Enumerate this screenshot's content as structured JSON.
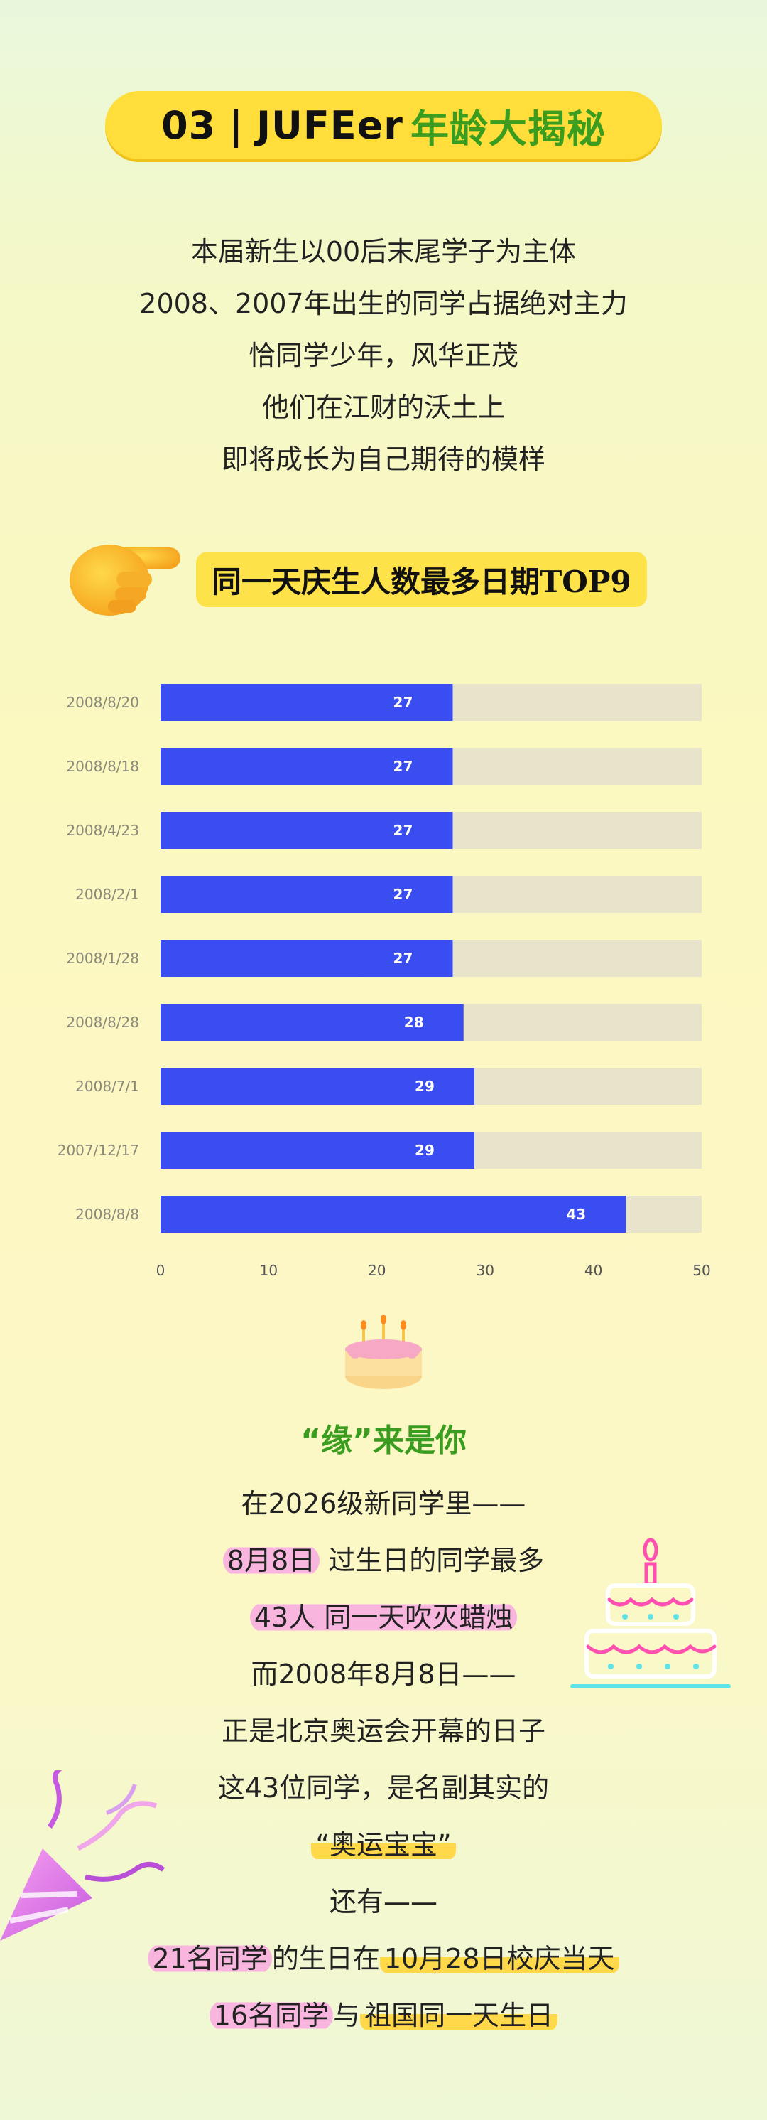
{
  "header": {
    "number": "03",
    "separator": "|",
    "title_en": "JUFEer",
    "title_cn": "年龄大揭秘"
  },
  "intro": [
    "本届新生以00后末尾学子为主体",
    "2008、2007年出生的同学占据绝对主力",
    "恰同学少年，风华正茂",
    "他们在江财的沃土上",
    "即将成长为自己期待的模样"
  ],
  "chart_title": "同一天庆生人数最多日期TOP9",
  "chart_data": {
    "type": "bar",
    "orientation": "horizontal",
    "categories": [
      "2008/8/20",
      "2008/8/18",
      "2008/4/23",
      "2008/2/1",
      "2008/1/28",
      "2008/8/28",
      "2008/7/1",
      "2007/12/17",
      "2008/8/8"
    ],
    "values": [
      27,
      27,
      27,
      27,
      27,
      28,
      29,
      29,
      43
    ],
    "xlim": [
      0,
      50
    ],
    "xticks": [
      0,
      10,
      20,
      30,
      40,
      50
    ],
    "bar_color": "#3a4df0",
    "track_color": "#e8e4cc",
    "label_color": "#ffffff"
  },
  "yuan_heading": "“缘”来是你",
  "story": {
    "line1": "在2026级新同学里——",
    "line2_hl": "8月8日",
    "line2_rest": "过生日的同学最多",
    "line3_hl": "43人 同一天吹灭蜡烛",
    "line4": "而2008年8月8日——",
    "line5": "正是北京奥运会开幕的日子",
    "line6": "这43位同学，是名副其实的",
    "line7_hl": "“奥运宝宝”",
    "line8": "还有——",
    "line9_a": "21名同学",
    "line9_b": "的生日在",
    "line9_c": "10月28日校庆当天",
    "line10_a": "16名同学",
    "line10_b": "与",
    "line10_c": "祖国同一天生日"
  },
  "icons": {
    "hand": "pointing-hand-icon",
    "cake": "birthday-cake-icon",
    "neon_cake": "neon-cake-icon",
    "popper": "party-popper-icon"
  }
}
